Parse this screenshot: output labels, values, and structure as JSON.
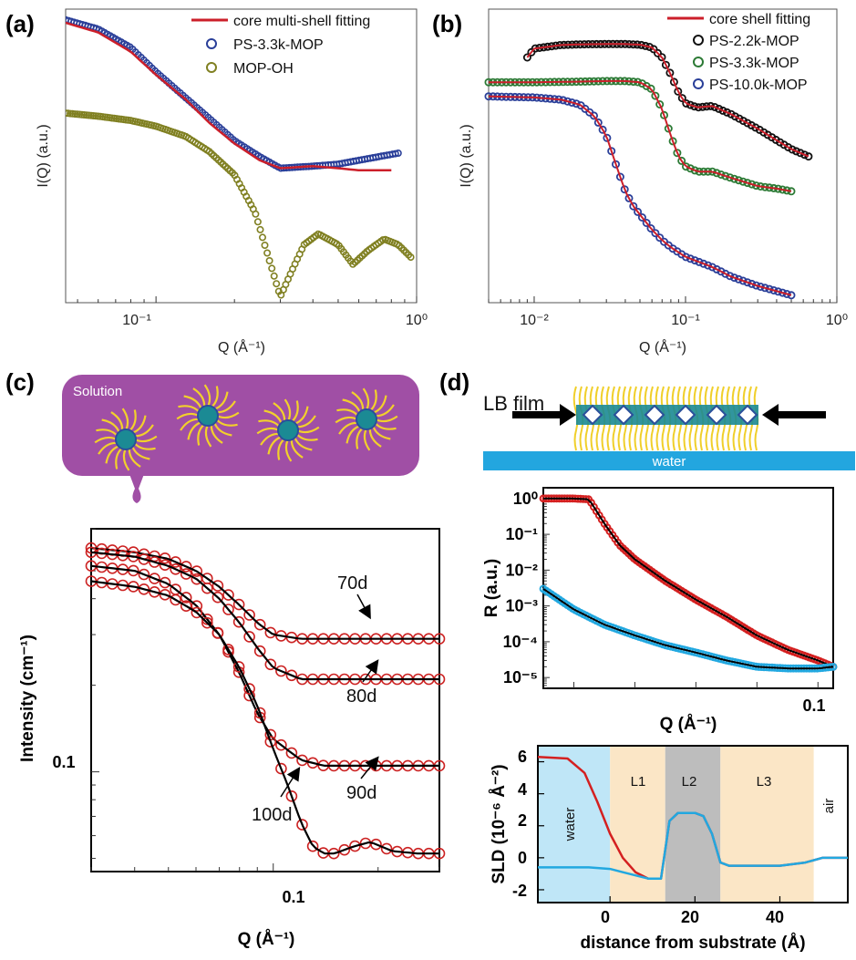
{
  "chart_data": [
    {
      "panel": "(a)",
      "type": "scatter",
      "xscale": "log",
      "yscale": "log",
      "xlabel": "Q (Å⁻¹)",
      "ylabel": "I(Q) (a.u.)",
      "xlim": [
        0.045,
        1.0
      ],
      "ylim": [
        0.06,
        3.0
      ],
      "x_tick_labels": [
        "10⁻¹",
        "10⁰"
      ],
      "legend": {
        "location": "top-right"
      },
      "series": [
        {
          "name": "core multi-shell fitting",
          "kind": "line",
          "color": "#cc1f2a",
          "x": [
            0.045,
            0.06,
            0.08,
            0.1,
            0.13,
            0.16,
            0.2,
            0.25,
            0.3,
            0.4,
            0.5,
            0.6,
            0.8
          ],
          "y": [
            2.5,
            2.2,
            1.7,
            1.25,
            0.9,
            0.66,
            0.5,
            0.4,
            0.36,
            0.37,
            0.36,
            0.35,
            0.35
          ]
        },
        {
          "name": "PS-3.3k-MOP",
          "kind": "marker",
          "color": "#2a3f99",
          "x": [
            0.045,
            0.06,
            0.08,
            0.1,
            0.13,
            0.16,
            0.2,
            0.25,
            0.3,
            0.4,
            0.5,
            0.6,
            0.85
          ],
          "y": [
            2.6,
            2.3,
            1.8,
            1.3,
            0.92,
            0.7,
            0.52,
            0.42,
            0.36,
            0.37,
            0.38,
            0.4,
            0.44
          ]
        },
        {
          "name": "MOP-OH",
          "kind": "marker",
          "color": "#808022",
          "x": [
            0.045,
            0.06,
            0.08,
            0.1,
            0.13,
            0.16,
            0.2,
            0.24,
            0.27,
            0.3,
            0.33,
            0.37,
            0.42,
            0.5,
            0.57,
            0.65,
            0.75,
            0.85,
            0.95
          ],
          "y": [
            0.75,
            0.72,
            0.68,
            0.63,
            0.55,
            0.45,
            0.33,
            0.2,
            0.11,
            0.065,
            0.09,
            0.13,
            0.15,
            0.13,
            0.1,
            0.12,
            0.14,
            0.13,
            0.11
          ]
        }
      ]
    },
    {
      "panel": "(b)",
      "type": "scatter",
      "xscale": "log",
      "yscale": "log",
      "xlabel": "Q (Å⁻¹)",
      "ylabel": "I(Q) (a.u.)",
      "xlim": [
        0.005,
        1.0
      ],
      "ylim": [
        0.001,
        30.0
      ],
      "x_tick_labels": [
        "10⁻²",
        "10⁻¹",
        "10⁰"
      ],
      "legend": {
        "location": "top-right"
      },
      "series": [
        {
          "name": "core shell fitting",
          "kind": "line",
          "color": "#cc1f2a"
        },
        {
          "name": "PS-2.2k-MOP",
          "kind": "marker",
          "color": "#111111",
          "x": [
            0.009,
            0.01,
            0.015,
            0.02,
            0.03,
            0.04,
            0.05,
            0.06,
            0.07,
            0.08,
            0.09,
            0.1,
            0.12,
            0.15,
            0.2,
            0.3,
            0.4,
            0.5,
            0.65
          ],
          "y": [
            5.5,
            7.5,
            8.5,
            8.7,
            8.8,
            8.8,
            8.6,
            7.8,
            5.5,
            3.0,
            1.6,
            1.1,
            0.95,
            1.0,
            0.75,
            0.45,
            0.3,
            0.22,
            0.17
          ]
        },
        {
          "name": "PS-3.3k-MOP",
          "kind": "marker",
          "color": "#2c7a35",
          "x": [
            0.005,
            0.01,
            0.02,
            0.03,
            0.04,
            0.05,
            0.06,
            0.07,
            0.08,
            0.09,
            0.1,
            0.12,
            0.15,
            0.2,
            0.3,
            0.4,
            0.5
          ],
          "y": [
            2.3,
            2.3,
            2.35,
            2.4,
            2.4,
            2.3,
            1.8,
            0.9,
            0.35,
            0.17,
            0.12,
            0.1,
            0.1,
            0.08,
            0.06,
            0.055,
            0.05
          ]
        },
        {
          "name": "PS-10.0k-MOP",
          "kind": "marker",
          "color": "#2a3f99",
          "x": [
            0.005,
            0.01,
            0.015,
            0.02,
            0.025,
            0.03,
            0.035,
            0.04,
            0.045,
            0.05,
            0.06,
            0.07,
            0.08,
            0.1,
            0.15,
            0.2,
            0.3,
            0.4,
            0.5
          ],
          "y": [
            1.4,
            1.35,
            1.25,
            1.05,
            0.7,
            0.35,
            0.12,
            0.05,
            0.03,
            0.022,
            0.013,
            0.009,
            0.007,
            0.005,
            0.0035,
            0.0025,
            0.0018,
            0.0015,
            0.0013
          ]
        }
      ]
    },
    {
      "panel": "(c)",
      "type": "scatter",
      "xscale": "log",
      "yscale": "log",
      "xlabel": "Q (Å⁻¹)",
      "ylabel": "Intensity (cm⁻¹)",
      "xlim": [
        0.03,
        0.3
      ],
      "ylim": [
        0.045,
        0.7
      ],
      "x_tick_labels": [
        "0.1"
      ],
      "y_tick_labels": [
        "0.1"
      ],
      "inset_label": "Solution",
      "annotations": [
        "70d",
        "80d",
        "90d",
        "100d"
      ],
      "series": [
        {
          "name": "70d",
          "kind": "marker+line",
          "color": "#cc2222",
          "x": [
            0.03,
            0.04,
            0.05,
            0.06,
            0.07,
            0.08,
            0.09,
            0.1,
            0.12,
            0.14,
            0.16,
            0.18,
            0.2,
            0.25,
            0.3
          ],
          "y": [
            0.6,
            0.58,
            0.55,
            0.5,
            0.44,
            0.38,
            0.33,
            0.3,
            0.29,
            0.29,
            0.29,
            0.29,
            0.29,
            0.29,
            0.29
          ]
        },
        {
          "name": "80d",
          "kind": "marker+line",
          "color": "#cc2222",
          "x": [
            0.03,
            0.04,
            0.05,
            0.06,
            0.07,
            0.08,
            0.09,
            0.1,
            0.12,
            0.14,
            0.16,
            0.18,
            0.2,
            0.25,
            0.3
          ],
          "y": [
            0.58,
            0.56,
            0.52,
            0.47,
            0.4,
            0.33,
            0.27,
            0.23,
            0.21,
            0.21,
            0.21,
            0.21,
            0.21,
            0.21,
            0.21
          ]
        },
        {
          "name": "90d",
          "kind": "marker+line",
          "color": "#cc2222",
          "x": [
            0.03,
            0.04,
            0.05,
            0.06,
            0.07,
            0.08,
            0.09,
            0.1,
            0.12,
            0.14,
            0.16,
            0.18,
            0.2,
            0.25,
            0.3
          ],
          "y": [
            0.52,
            0.5,
            0.45,
            0.38,
            0.3,
            0.22,
            0.16,
            0.13,
            0.11,
            0.105,
            0.105,
            0.105,
            0.105,
            0.105,
            0.105
          ]
        },
        {
          "name": "100d",
          "kind": "marker+line",
          "color": "#cc2222",
          "x": [
            0.03,
            0.04,
            0.05,
            0.06,
            0.07,
            0.08,
            0.09,
            0.1,
            0.11,
            0.12,
            0.13,
            0.14,
            0.15,
            0.17,
            0.19,
            0.22,
            0.26,
            0.3
          ],
          "y": [
            0.46,
            0.44,
            0.41,
            0.36,
            0.3,
            0.23,
            0.17,
            0.12,
            0.09,
            0.067,
            0.055,
            0.052,
            0.052,
            0.055,
            0.057,
            0.053,
            0.052,
            0.052
          ]
        }
      ]
    },
    {
      "panel": "(d)",
      "type": "scatter",
      "xscale": "linear",
      "yscale": "log",
      "xlabel": "Q (Å⁻¹)",
      "ylabel": "R (a.u.)",
      "xlim": [
        0.01,
        0.105
      ],
      "ylim": [
        5e-06,
        2.0
      ],
      "x_tick_labels": [
        "0.1"
      ],
      "y_tick_labels": [
        "10⁰",
        "10⁻¹",
        "10⁻²",
        "10⁻³",
        "10⁻⁴",
        "10⁻⁵"
      ],
      "series": [
        {
          "name": "red",
          "kind": "marker+line",
          "color": "#d42020",
          "x": [
            0.01,
            0.015,
            0.02,
            0.025,
            0.03,
            0.035,
            0.04,
            0.05,
            0.06,
            0.07,
            0.08,
            0.09,
            0.1,
            0.105
          ],
          "y": [
            1.0,
            1.0,
            1.0,
            0.95,
            0.2,
            0.05,
            0.02,
            0.005,
            0.0015,
            0.0005,
            0.00015,
            6e-05,
            3e-05,
            2e-05
          ]
        },
        {
          "name": "blue",
          "kind": "marker+line",
          "color": "#22a8e0",
          "x": [
            0.01,
            0.02,
            0.03,
            0.04,
            0.05,
            0.06,
            0.07,
            0.08,
            0.09,
            0.1,
            0.105
          ],
          "y": [
            0.003,
            0.0008,
            0.0003,
            0.00015,
            8e-05,
            5e-05,
            3e-05,
            2e-05,
            1.8e-05,
            1.8e-05,
            2e-05
          ]
        }
      ]
    },
    {
      "panel": "(d) SLD",
      "type": "line",
      "xlabel": "distance from substrate (Å)",
      "ylabel": "SLD (10⁻⁶ Å⁻²)",
      "xlim": [
        -17,
        56
      ],
      "ylim": [
        -2.8,
        7.0
      ],
      "x_tick_labels": [
        "0",
        "20",
        "40"
      ],
      "y_tick_labels": [
        "6",
        "4",
        "2",
        "0",
        "-2"
      ],
      "regions": [
        {
          "label": "water",
          "from": -17,
          "to": 0,
          "color": "#bfe6f7"
        },
        {
          "label": "L1",
          "from": 0,
          "to": 13,
          "color": "#fbe6c6"
        },
        {
          "label": "L2",
          "from": 13,
          "to": 26,
          "color": "#bdbdbd"
        },
        {
          "label": "L3",
          "from": 26,
          "to": 48,
          "color": "#fbe6c6"
        },
        {
          "label": "air",
          "from": 48,
          "to": 56,
          "color": "#ffffff"
        }
      ],
      "series": [
        {
          "name": "red",
          "color": "#d42020",
          "x": [
            -17,
            -10,
            -6,
            -3,
            0,
            3,
            6,
            9,
            12,
            14,
            16,
            18,
            20,
            22,
            24,
            26,
            28,
            32,
            40,
            46,
            50,
            56
          ],
          "y": [
            6.3,
            6.2,
            5.3,
            3.5,
            1.5,
            0.0,
            -0.9,
            -1.3,
            -1.3,
            2.3,
            2.8,
            2.8,
            2.8,
            2.6,
            1.5,
            -0.3,
            -0.5,
            -0.5,
            -0.5,
            -0.3,
            0.0,
            0.0
          ]
        },
        {
          "name": "blue",
          "color": "#22a8e0",
          "x": [
            -17,
            -10,
            -5,
            0,
            3,
            6,
            9,
            12,
            14,
            16,
            18,
            20,
            22,
            24,
            26,
            28,
            32,
            40,
            46,
            50,
            56
          ],
          "y": [
            -0.6,
            -0.6,
            -0.6,
            -0.7,
            -0.9,
            -1.1,
            -1.3,
            -1.3,
            2.3,
            2.8,
            2.8,
            2.8,
            2.6,
            1.5,
            -0.3,
            -0.5,
            -0.5,
            -0.5,
            -0.3,
            0.0,
            0.0
          ]
        }
      ]
    }
  ],
  "schematic_c": {
    "label": "Solution",
    "bubble_color": "#a04fa5"
  },
  "schematic_d": {
    "film_label": "LB film",
    "substrate_label": "water",
    "water_color": "#23a6df"
  }
}
